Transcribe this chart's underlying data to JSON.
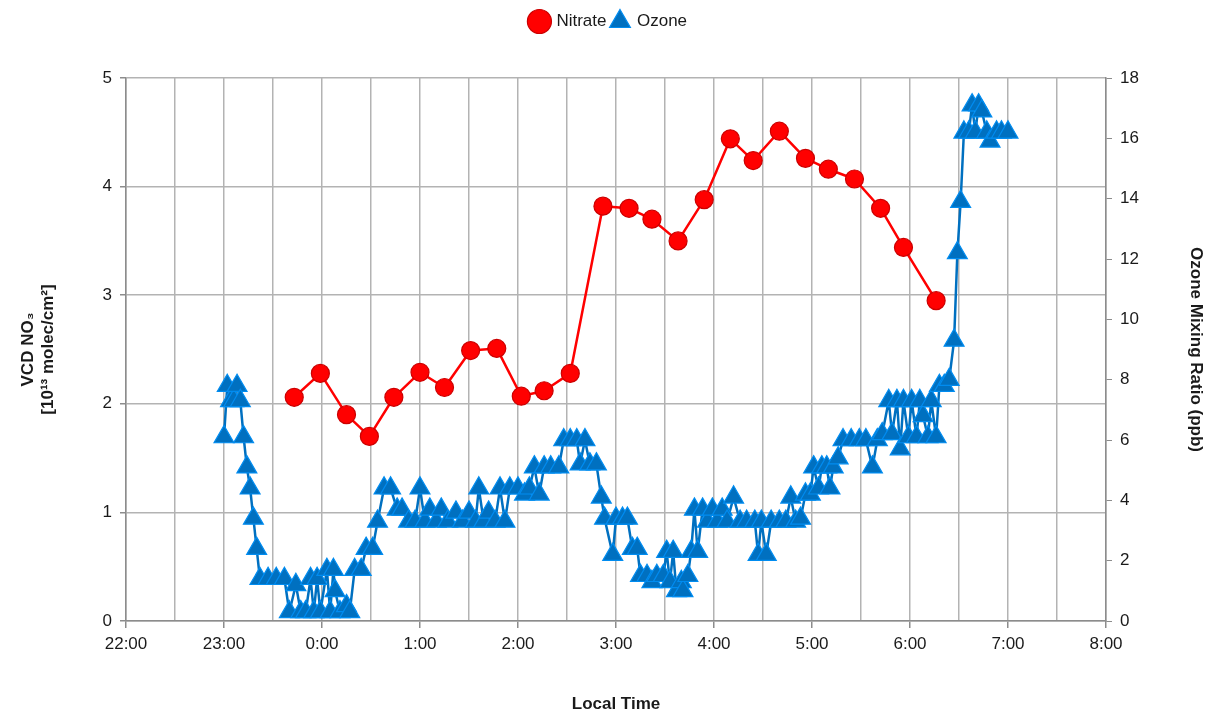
{
  "chart_data": {
    "type": "line",
    "xlabel": "Local Time",
    "ylabel": "VCD NO₃\n[10¹³ molec/cm²]",
    "y2label": "Ozone Mixing Ratio (ppb)",
    "xlim": [
      "2000-01-01T22:00",
      "2000-01-02T08:00"
    ],
    "xticks": [
      {
        "value": "2000-01-01T22:00",
        "label": "22:00"
      },
      {
        "value": "2000-01-01T22:30",
        "label": null
      },
      {
        "value": "2000-01-01T23:00",
        "label": "23:00"
      },
      {
        "value": "2000-01-01T23:30",
        "label": null
      },
      {
        "value": "2000-01-02T00:00",
        "label": "0:00"
      },
      {
        "value": "2000-01-02T00:30",
        "label": null
      },
      {
        "value": "2000-01-02T01:00",
        "label": "1:00"
      },
      {
        "value": "2000-01-02T01:30",
        "label": null
      },
      {
        "value": "2000-01-02T02:00",
        "label": "2:00"
      },
      {
        "value": "2000-01-02T02:30",
        "label": null
      },
      {
        "value": "2000-01-02T03:00",
        "label": "3:00"
      },
      {
        "value": "2000-01-02T03:30",
        "label": null
      },
      {
        "value": "2000-01-02T04:00",
        "label": "4:00"
      },
      {
        "value": "2000-01-02T04:30",
        "label": null
      },
      {
        "value": "2000-01-02T05:00",
        "label": "5:00"
      },
      {
        "value": "2000-01-02T05:30",
        "label": null
      },
      {
        "value": "2000-01-02T06:00",
        "label": "6:00"
      },
      {
        "value": "2000-01-02T06:30",
        "label": null
      },
      {
        "value": "2000-01-02T07:00",
        "label": "7:00"
      },
      {
        "value": "2000-01-02T07:30",
        "label": null
      },
      {
        "value": "2000-01-02T08:00",
        "label": "8:00"
      }
    ],
    "ylim": [
      0,
      5
    ],
    "yticks": [
      0,
      1,
      2,
      3,
      4,
      5
    ],
    "y2lim": [
      0,
      18
    ],
    "y2ticks": [
      0,
      2,
      4,
      6,
      8,
      10,
      12,
      14,
      16,
      18
    ],
    "grid": true,
    "legend": "top",
    "series": [
      {
        "name": "Nitrate",
        "color": "#ff0000",
        "marker": "circle",
        "x": [
          "2000-01-01T23:43",
          "2000-01-01T23:59",
          "2000-01-02T00:15",
          "2000-01-02T00:29",
          "2000-01-02T00:44",
          "2000-01-02T01:00",
          "2000-01-02T01:15",
          "2000-01-02T01:31",
          "2000-01-02T01:47",
          "2000-01-02T02:02",
          "2000-01-02T02:16",
          "2000-01-02T02:32",
          "2000-01-02T02:52",
          "2000-01-02T03:08",
          "2000-01-02T03:22",
          "2000-01-02T03:38",
          "2000-01-02T03:54",
          "2000-01-02T04:10",
          "2000-01-02T04:24",
          "2000-01-02T04:40",
          "2000-01-02T04:56",
          "2000-01-02T05:10",
          "2000-01-02T05:26",
          "2000-01-02T05:42",
          "2000-01-02T05:56",
          "2000-01-02T06:16"
        ],
        "values": [
          2.06,
          2.28,
          1.9,
          1.7,
          2.06,
          2.29,
          2.15,
          2.49,
          2.51,
          2.07,
          2.12,
          2.28,
          3.82,
          3.8,
          3.7,
          3.5,
          3.88,
          4.44,
          4.24,
          4.51,
          4.26,
          4.16,
          4.07,
          3.8,
          3.44,
          2.95
        ]
      },
      {
        "name": "Ozone",
        "color": "#0070c0",
        "marker": "triangle",
        "axis": "y2",
        "x": [
          "2000-01-01T23:00",
          "2000-01-01T23:02",
          "2000-01-01T23:04",
          "2000-01-01T23:06",
          "2000-01-01T23:08",
          "2000-01-01T23:10",
          "2000-01-01T23:12",
          "2000-01-01T23:14",
          "2000-01-01T23:16",
          "2000-01-01T23:18",
          "2000-01-01T23:20",
          "2000-01-01T23:22",
          "2000-01-01T23:27",
          "2000-01-01T23:32",
          "2000-01-01T23:37",
          "2000-01-01T23:40",
          "2000-01-01T23:44",
          "2000-01-01T23:47",
          "2000-01-01T23:50",
          "2000-01-01T23:53",
          "2000-01-01T23:55",
          "2000-01-01T23:57",
          "2000-01-01T23:59",
          "2000-01-02T00:03",
          "2000-01-02T00:05",
          "2000-01-02T00:07",
          "2000-01-02T00:08",
          "2000-01-02T00:11",
          "2000-01-02T00:15",
          "2000-01-02T00:17",
          "2000-01-02T00:20",
          "2000-01-02T00:24",
          "2000-01-02T00:27",
          "2000-01-02T00:31",
          "2000-01-02T00:34",
          "2000-01-02T00:38",
          "2000-01-02T00:42",
          "2000-01-02T00:46",
          "2000-01-02T00:49",
          "2000-01-02T00:53",
          "2000-01-02T00:57",
          "2000-01-02T01:00",
          "2000-01-02T01:03",
          "2000-01-02T01:06",
          "2000-01-02T01:10",
          "2000-01-02T01:13",
          "2000-01-02T01:17",
          "2000-01-02T01:22",
          "2000-01-02T01:26",
          "2000-01-02T01:30",
          "2000-01-02T01:34",
          "2000-01-02T01:36",
          "2000-01-02T01:39",
          "2000-01-02T01:42",
          "2000-01-02T01:46",
          "2000-01-02T01:49",
          "2000-01-02T01:52",
          "2000-01-02T01:55",
          "2000-01-02T02:00",
          "2000-01-02T02:04",
          "2000-01-02T02:07",
          "2000-01-02T02:10",
          "2000-01-02T02:13",
          "2000-01-02T02:16",
          "2000-01-02T02:20",
          "2000-01-02T02:25",
          "2000-01-02T02:28",
          "2000-01-02T02:32",
          "2000-01-02T02:36",
          "2000-01-02T02:38",
          "2000-01-02T02:41",
          "2000-01-02T02:44",
          "2000-01-02T02:48",
          "2000-01-02T02:51",
          "2000-01-02T02:53",
          "2000-01-02T02:58",
          "2000-01-02T03:00",
          "2000-01-02T03:04",
          "2000-01-02T03:07",
          "2000-01-02T03:10",
          "2000-01-02T03:13",
          "2000-01-02T03:15",
          "2000-01-02T03:19",
          "2000-01-02T03:22",
          "2000-01-02T03:25",
          "2000-01-02T03:29",
          "2000-01-02T03:31",
          "2000-01-02T03:33",
          "2000-01-02T03:35",
          "2000-01-02T03:37",
          "2000-01-02T03:40",
          "2000-01-02T03:41",
          "2000-01-02T03:44",
          "2000-01-02T03:46",
          "2000-01-02T03:48",
          "2000-01-02T03:50",
          "2000-01-02T03:53",
          "2000-01-02T03:56",
          "2000-01-02T03:59",
          "2000-01-02T04:02",
          "2000-01-02T04:05",
          "2000-01-02T04:08",
          "2000-01-02T04:12",
          "2000-01-02T04:16",
          "2000-01-02T04:20",
          "2000-01-02T04:25",
          "2000-01-02T04:27",
          "2000-01-02T04:29",
          "2000-01-02T04:32",
          "2000-01-02T04:35",
          "2000-01-02T04:40",
          "2000-01-02T04:44",
          "2000-01-02T04:47",
          "2000-01-02T04:50",
          "2000-01-02T04:53",
          "2000-01-02T04:56",
          "2000-01-02T04:59",
          "2000-01-02T05:01",
          "2000-01-02T05:04",
          "2000-01-02T05:06",
          "2000-01-02T05:09",
          "2000-01-02T05:11",
          "2000-01-02T05:13",
          "2000-01-02T05:16",
          "2000-01-02T05:19",
          "2000-01-02T05:24",
          "2000-01-02T05:29",
          "2000-01-02T05:33",
          "2000-01-02T05:37",
          "2000-01-02T05:40",
          "2000-01-02T05:43",
          "2000-01-02T05:47",
          "2000-01-02T05:49",
          "2000-01-02T05:52",
          "2000-01-02T05:54",
          "2000-01-02T05:56",
          "2000-01-02T05:59",
          "2000-01-02T06:01",
          "2000-01-02T06:04",
          "2000-01-02T06:06",
          "2000-01-02T06:08",
          "2000-01-02T06:11",
          "2000-01-02T06:13",
          "2000-01-02T06:16",
          "2000-01-02T06:18",
          "2000-01-02T06:21",
          "2000-01-02T06:24",
          "2000-01-02T06:27",
          "2000-01-02T06:29",
          "2000-01-02T06:31",
          "2000-01-02T06:33",
          "2000-01-02T06:36",
          "2000-01-02T06:38",
          "2000-01-02T06:40",
          "2000-01-02T06:42",
          "2000-01-02T06:44",
          "2000-01-02T06:47",
          "2000-01-02T06:49",
          "2000-01-02T06:53",
          "2000-01-02T06:56",
          "2000-01-02T07:00"
        ],
        "values": [
          6.1,
          7.8,
          7.3,
          7.3,
          7.8,
          7.3,
          6.1,
          5.1,
          4.4,
          3.4,
          2.4,
          1.4,
          1.4,
          1.4,
          1.4,
          0.3,
          1.2,
          0.3,
          0.3,
          1.4,
          0.3,
          1.4,
          0.3,
          1.7,
          0.3,
          1.7,
          1.0,
          0.3,
          0.5,
          0.3,
          1.7,
          1.7,
          2.4,
          2.4,
          3.3,
          4.4,
          4.4,
          3.7,
          3.7,
          3.3,
          3.3,
          4.4,
          3.3,
          3.7,
          3.3,
          3.7,
          3.3,
          3.6,
          3.3,
          3.6,
          3.3,
          4.4,
          3.3,
          3.6,
          3.3,
          4.4,
          3.3,
          4.4,
          4.4,
          4.2,
          4.4,
          5.1,
          4.2,
          5.1,
          5.1,
          5.1,
          6.0,
          6.0,
          6.0,
          5.2,
          6.0,
          5.2,
          5.2,
          4.1,
          3.4,
          2.2,
          3.4,
          3.4,
          3.4,
          2.4,
          2.4,
          1.5,
          1.5,
          1.3,
          1.5,
          1.5,
          2.3,
          1.3,
          2.3,
          1.0,
          1.3,
          1.0,
          1.5,
          2.3,
          3.7,
          2.3,
          3.7,
          3.3,
          3.7,
          3.3,
          3.7,
          3.3,
          4.1,
          3.3,
          3.3,
          3.3,
          2.2,
          3.3,
          2.2,
          3.3,
          3.3,
          3.3,
          4.1,
          3.3,
          3.4,
          4.2,
          4.2,
          5.1,
          4.4,
          5.1,
          5.1,
          4.4,
          5.1,
          5.4,
          6.0,
          6.0,
          6.0,
          6.0,
          5.1,
          6.0,
          6.2,
          7.3,
          6.2,
          7.3,
          5.7,
          7.3,
          6.1,
          7.3,
          6.1,
          7.3,
          6.8,
          6.1,
          7.3,
          6.1,
          7.8,
          7.8,
          8.0,
          9.3,
          12.2,
          13.9,
          16.2,
          16.2,
          17.1,
          16.2,
          17.1,
          16.9,
          16.2,
          15.9,
          16.2,
          16.2,
          16.2
        ]
      }
    ]
  }
}
